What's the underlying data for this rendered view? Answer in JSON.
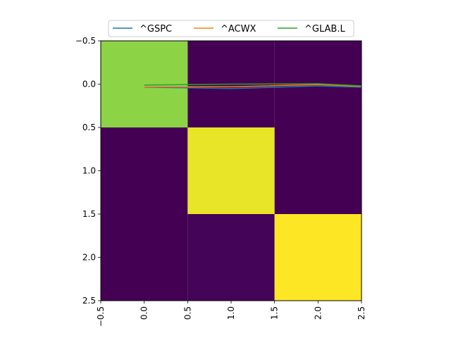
{
  "chart_data": {
    "type": "heatmap",
    "title": "",
    "xlabel": "",
    "ylabel": "",
    "xlim": [
      -0.5,
      2.5
    ],
    "ylim": [
      2.5,
      -0.5
    ],
    "x_ticks": [
      -0.5,
      0.0,
      0.5,
      1.0,
      1.5,
      2.0,
      2.5
    ],
    "x_tick_labels": [
      "−0.5",
      "0.0",
      "0.5",
      "1.0",
      "1.5",
      "2.0",
      "2.5"
    ],
    "y_ticks": [
      -0.5,
      0.0,
      0.5,
      1.0,
      1.5,
      2.0,
      2.5
    ],
    "y_tick_labels": [
      "−0.5",
      "0.0",
      "0.5",
      "1.0",
      "1.5",
      "2.0",
      "2.5"
    ],
    "grid": false,
    "colormap": "viridis",
    "matrix": [
      [
        0.83,
        0.0,
        0.0
      ],
      [
        0.0,
        0.97,
        0.0
      ],
      [
        0.0,
        0.01,
        1.0
      ]
    ],
    "legend_position": "top-center",
    "series": [
      {
        "name": "^GSPC",
        "color": "#1f77b4",
        "x": [
          0,
          1,
          2,
          2.5
        ],
        "y": [
          0.035,
          0.05,
          0.02,
          0.035
        ]
      },
      {
        "name": "^ACWX",
        "color": "#ff7f0e",
        "x": [
          0,
          1,
          2,
          2.5
        ],
        "y": [
          0.03,
          0.03,
          0.005,
          0.025
        ]
      },
      {
        "name": "^GLAB.L",
        "color": "#2ca02c",
        "x": [
          0,
          1,
          2,
          2.5
        ],
        "y": [
          0.01,
          0.0,
          -0.005,
          0.02
        ]
      }
    ]
  }
}
